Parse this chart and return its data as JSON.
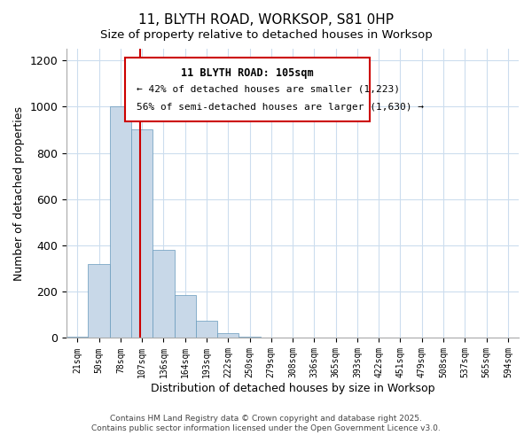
{
  "title": "11, BLYTH ROAD, WORKSOP, S81 0HP",
  "subtitle": "Size of property relative to detached houses in Worksop",
  "xlabel": "Distribution of detached houses by size in Worksop",
  "ylabel": "Number of detached properties",
  "bar_color": "#c8d8e8",
  "bar_edge_color": "#6699bb",
  "grid_color": "#ccddee",
  "bin_labels": [
    "21sqm",
    "50sqm",
    "78sqm",
    "107sqm",
    "136sqm",
    "164sqm",
    "193sqm",
    "222sqm",
    "250sqm",
    "279sqm",
    "308sqm",
    "336sqm",
    "365sqm",
    "393sqm",
    "422sqm",
    "451sqm",
    "479sqm",
    "508sqm",
    "537sqm",
    "565sqm",
    "594sqm"
  ],
  "bar_heights": [
    5,
    320,
    1000,
    900,
    380,
    185,
    75,
    20,
    5,
    0,
    0,
    0,
    0,
    0,
    0,
    0,
    0,
    0,
    0,
    0,
    0
  ],
  "ylim": [
    0,
    1250
  ],
  "yticks": [
    0,
    200,
    400,
    600,
    800,
    1000,
    1200
  ],
  "property_line_x": 2.93,
  "annotation_title": "11 BLYTH ROAD: 105sqm",
  "annotation_line1": "← 42% of detached houses are smaller (1,223)",
  "annotation_line2": "56% of semi-detached houses are larger (1,630) →",
  "annotation_box_color": "#ffffff",
  "annotation_box_edge": "#cc0000",
  "red_line_color": "#cc0000",
  "footer1": "Contains HM Land Registry data © Crown copyright and database right 2025.",
  "footer2": "Contains public sector information licensed under the Open Government Licence v3.0."
}
